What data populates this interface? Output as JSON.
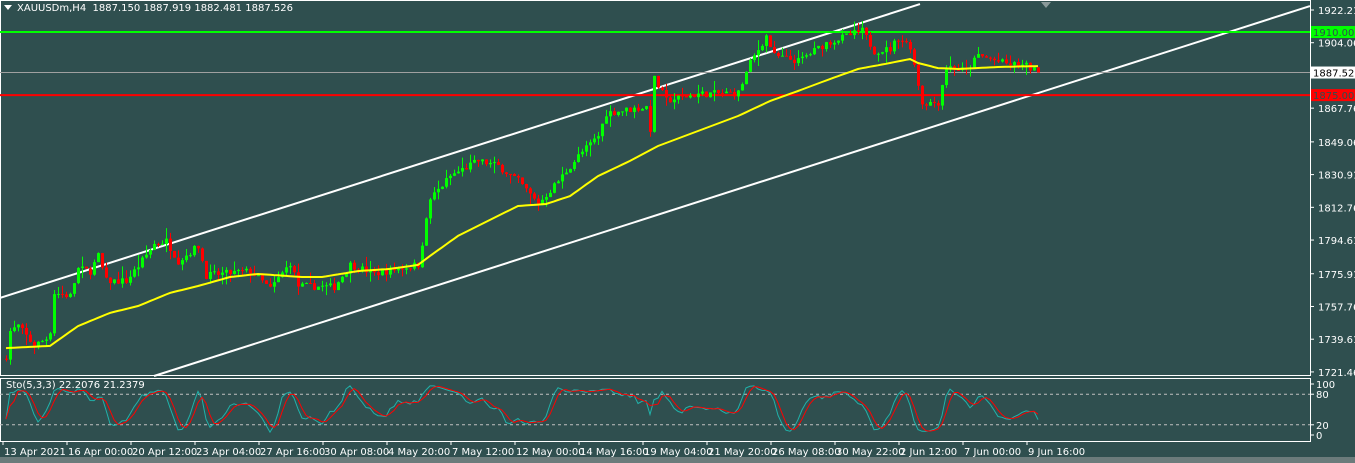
{
  "header": {
    "symbol_timeframe": "XAUUSDm,H4",
    "ohlc": "1887.150 1887.919 1882.481 1887.526"
  },
  "indicator": {
    "label": "Sto(5,3,3) 22.2076 21.2379",
    "levels": [
      80,
      20
    ],
    "axis_labels": [
      "100",
      "80",
      "20",
      "0"
    ],
    "main_color": "#20b2aa",
    "signal_color": "#ff0000"
  },
  "colors": {
    "background": "#2f4f4f",
    "bull": "#00ff00",
    "bear": "#ff0000",
    "ma": "#ffff00",
    "channel": "#ffffff",
    "resistance": "#00ff00",
    "support": "#ff0000",
    "current": "#a0a0a0"
  },
  "chart_data": {
    "type": "candlestick",
    "symbol": "XAUUSDm",
    "timeframe": "H4",
    "y_ticks": [
      "1922.210",
      "1904.060",
      "1867.760",
      "1849.060",
      "1830.910",
      "1812.760",
      "1794.610",
      "1775.910",
      "1757.760",
      "1739.610",
      "1721.460"
    ],
    "ylim": [
      1719.2,
      1927.2
    ],
    "x_ticks": [
      "13 Apr 2021",
      "16 Apr 00:00",
      "20 Apr 12:00",
      "23 Apr 04:00",
      "27 Apr 16:00",
      "30 Apr 08:00",
      "4 May 20:00",
      "7 May 12:00",
      "12 May 00:00",
      "14 May 16:00",
      "19 May 04:00",
      "21 May 20:00",
      "26 May 08:00",
      "30 May 22:00",
      "2 Jun 12:00",
      "7 Jun 00:00",
      "9 Jun 16:00"
    ],
    "bars_per_x_tick": 16,
    "bar_count": 259,
    "close_path": [
      [
        0,
        1730.3
      ],
      [
        1,
        1744
      ],
      [
        3,
        1746.9
      ],
      [
        7,
        1735.9
      ],
      [
        10,
        1740
      ],
      [
        11,
        1744.2
      ],
      [
        12,
        1765.3
      ],
      [
        16,
        1763.6
      ],
      [
        18,
        1778.6
      ],
      [
        21,
        1777.4
      ],
      [
        23,
        1785.8
      ],
      [
        25,
        1771.9
      ],
      [
        30,
        1771.9
      ],
      [
        33,
        1780.2
      ],
      [
        37,
        1792.4
      ],
      [
        40,
        1794.1
      ],
      [
        43,
        1783.0
      ],
      [
        48,
        1791.3
      ],
      [
        50,
        1775
      ],
      [
        61,
        1777.4
      ],
      [
        66,
        1767.5
      ],
      [
        71,
        1781.9
      ],
      [
        73,
        1769.1
      ],
      [
        82,
        1768.6
      ],
      [
        86,
        1781
      ],
      [
        92,
        1776
      ],
      [
        103,
        1781
      ],
      [
        106,
        1817.4
      ],
      [
        111,
        1830.1
      ],
      [
        118,
        1838.5
      ],
      [
        123,
        1835.7
      ],
      [
        128,
        1827.4
      ],
      [
        133,
        1814.6
      ],
      [
        138,
        1827.4
      ],
      [
        143,
        1841.2
      ],
      [
        148,
        1852.3
      ],
      [
        150,
        1865.1
      ],
      [
        160,
        1868.4
      ],
      [
        161,
        1856.2
      ],
      [
        162,
        1883.9
      ],
      [
        165,
        1872
      ],
      [
        173,
        1875.6
      ],
      [
        183,
        1876.2
      ],
      [
        186,
        1892.8
      ],
      [
        190,
        1907.8
      ],
      [
        192,
        1896.7
      ],
      [
        198,
        1893.9
      ],
      [
        205,
        1903.9
      ],
      [
        214,
        1910.6
      ],
      [
        217,
        1899.5
      ],
      [
        221,
        1900.5
      ],
      [
        223,
        1907
      ],
      [
        226,
        1902.2
      ],
      [
        229,
        1870.6
      ],
      [
        233,
        1871
      ],
      [
        235,
        1891.1
      ],
      [
        240,
        1888.4
      ],
      [
        243,
        1897
      ],
      [
        250,
        1892.3
      ],
      [
        255,
        1891.1
      ],
      [
        258,
        1887.526
      ]
    ],
    "moving_average": [
      [
        0,
        1734.7
      ],
      [
        11,
        1735.9
      ],
      [
        18,
        1746.9
      ],
      [
        26,
        1754.2
      ],
      [
        33,
        1758.0
      ],
      [
        41,
        1765.3
      ],
      [
        48,
        1769.1
      ],
      [
        56,
        1774.1
      ],
      [
        63,
        1775.8
      ],
      [
        74,
        1774.1
      ],
      [
        79,
        1774.1
      ],
      [
        88,
        1777.4
      ],
      [
        96,
        1778.6
      ],
      [
        103,
        1780.8
      ],
      [
        106,
        1785.8
      ],
      [
        113,
        1796.9
      ],
      [
        123,
        1808.0
      ],
      [
        128,
        1813.5
      ],
      [
        135,
        1814.6
      ],
      [
        141,
        1819.0
      ],
      [
        148,
        1830.1
      ],
      [
        156,
        1838.5
      ],
      [
        163,
        1846.8
      ],
      [
        173,
        1855.1
      ],
      [
        183,
        1863.4
      ],
      [
        191,
        1871.7
      ],
      [
        198,
        1877.3
      ],
      [
        206,
        1883.9
      ],
      [
        213,
        1889.5
      ],
      [
        221,
        1892.8
      ],
      [
        226,
        1895.0
      ],
      [
        228,
        1892.8
      ],
      [
        233,
        1890.0
      ],
      [
        238,
        1889.5
      ],
      [
        248,
        1890.6
      ],
      [
        258,
        1891.1
      ]
    ],
    "channel_upper": [
      [
        -1.5,
        1762.5
      ],
      [
        228.5,
        1925.5
      ]
    ],
    "channel_lower": [
      [
        37,
        1719.2
      ],
      [
        326,
        1924.4
      ]
    ],
    "horizontal_lines": [
      {
        "label": "1910.000",
        "price": 1910.0,
        "role": "resistance"
      },
      {
        "label": "1875.000",
        "price": 1875.0,
        "role": "support"
      }
    ],
    "current_price": {
      "label": "1887.526",
      "price": 1887.526
    }
  }
}
